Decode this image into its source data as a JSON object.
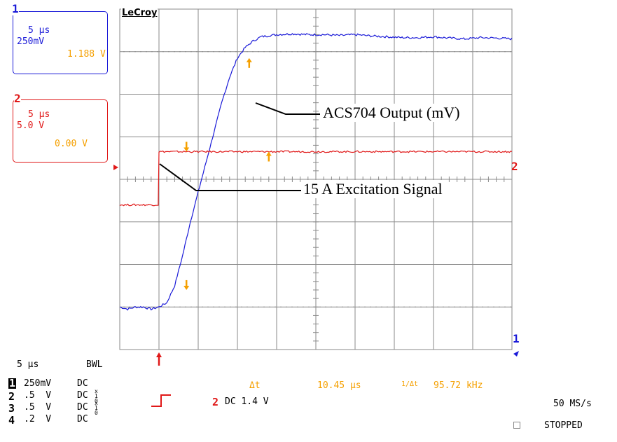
{
  "brand": "LeCroy",
  "colors": {
    "ch1": "#1a1ad8",
    "ch2": "#e01818",
    "cursor": "#f5a000",
    "grid": "#8a8a8a",
    "text": "#000000"
  },
  "ch1_box": {
    "num": "1",
    "timebase": "5 μs",
    "volts_div": "250mV",
    "cursor_value": "1.188 V"
  },
  "ch2_box": {
    "num": "2",
    "timebase": "5 μs",
    "volts_div": "5.0 V",
    "cursor_value": "0.00 V"
  },
  "annotations": {
    "output_label": "ACS704 Output (mV)",
    "excitation_label": "15 A Excitation Signal"
  },
  "bottom": {
    "timebase": "5 μs",
    "bwl": "BWL",
    "channels": [
      {
        "num": "1",
        "scale": "250mV",
        "coupling": "DC",
        "probe": ""
      },
      {
        "num": "2",
        "scale": ".5  V",
        "coupling": "DC",
        "probe": "x10"
      },
      {
        "num": "3",
        "scale": ".5  V",
        "coupling": "DC",
        "probe": "x10"
      },
      {
        "num": "4",
        "scale": ".2  V",
        "coupling": "DC",
        "probe": ""
      }
    ],
    "delta_t_label": "Δt",
    "delta_t_value": "10.45 μs",
    "inv_delta_t_label": "1/Δt",
    "inv_delta_t_value": "95.72 kHz",
    "trigger_channel": "2",
    "trigger_setting": "DC 1.4 V",
    "sample_rate": "50 MS/s",
    "status": "STOPPED"
  },
  "edge_markers": {
    "ch1_right": "1",
    "ch2_right": "2"
  },
  "chart_data": {
    "type": "line",
    "title": "",
    "xlabel": "",
    "ylabel": "",
    "grid": true,
    "x_divisions": 10,
    "y_divisions": 8,
    "x_units": "μs",
    "x_per_div": 5,
    "xlim": [
      0,
      50
    ],
    "ylim_divs": [
      -4,
      4
    ],
    "series": [
      {
        "name": "ACS704 Output (mV)",
        "color": "#1a1ad8",
        "points": [
          [
            0,
            -3.0
          ],
          [
            1,
            -3.05
          ],
          [
            2,
            -3.0
          ],
          [
            3,
            -3.0
          ],
          [
            4,
            -3.05
          ],
          [
            5,
            -3.0
          ],
          [
            6,
            -2.9
          ],
          [
            7,
            -2.5
          ],
          [
            8,
            -1.8
          ],
          [
            9,
            -1.0
          ],
          [
            10,
            -0.3
          ],
          [
            11,
            0.4
          ],
          [
            12,
            1.1
          ],
          [
            13,
            1.8
          ],
          [
            14,
            2.4
          ],
          [
            15,
            2.85
          ],
          [
            16,
            3.1
          ],
          [
            17,
            3.25
          ],
          [
            18,
            3.35
          ],
          [
            20,
            3.4
          ],
          [
            22,
            3.42
          ],
          [
            24,
            3.4
          ],
          [
            26,
            3.4
          ],
          [
            28,
            3.38
          ],
          [
            30,
            3.4
          ],
          [
            32,
            3.37
          ],
          [
            34,
            3.35
          ],
          [
            36,
            3.33
          ],
          [
            38,
            3.33
          ],
          [
            40,
            3.35
          ],
          [
            42,
            3.32
          ],
          [
            44,
            3.3
          ],
          [
            46,
            3.33
          ],
          [
            48,
            3.32
          ],
          [
            50,
            3.3
          ]
        ]
      },
      {
        "name": "15 A Excitation",
        "color": "#e01818",
        "points": [
          [
            0,
            -0.6
          ],
          [
            4.9,
            -0.6
          ],
          [
            5,
            0.65
          ],
          [
            50,
            0.65
          ]
        ]
      }
    ],
    "cursors": [
      {
        "x": 16.5,
        "y_div": 2.85,
        "dir": "up"
      },
      {
        "x": 8.5,
        "y_div": -2.6,
        "dir": "down"
      },
      {
        "x": 8.5,
        "y_div": 0.65,
        "dir": "down"
      },
      {
        "x": 19.0,
        "y_div": 0.65,
        "dir": "up"
      }
    ],
    "trigger_x": 5
  }
}
